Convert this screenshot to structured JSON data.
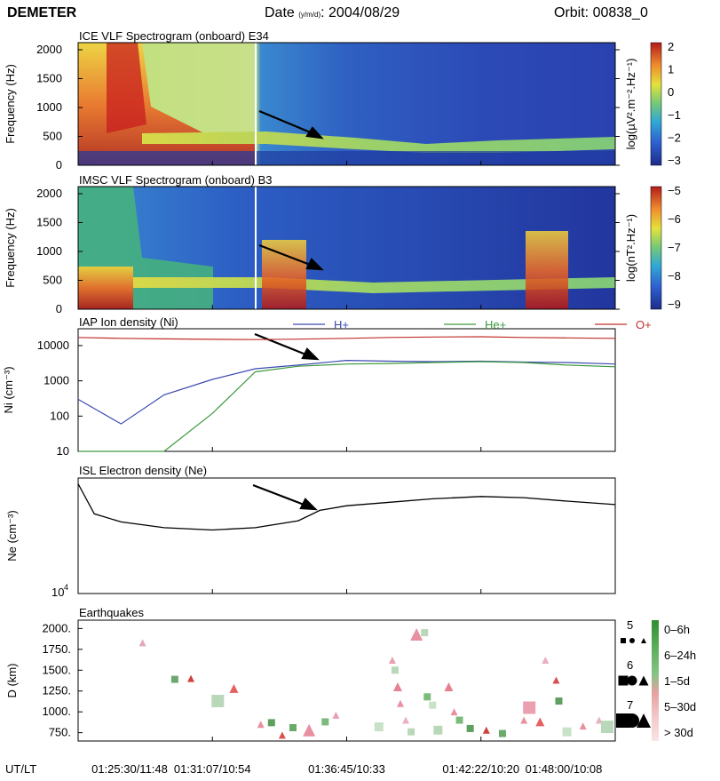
{
  "header": {
    "mission": "DEMETER",
    "date_label": "Date",
    "date_sub": "(y/m/d)",
    "date_value": ": 2004/08/29",
    "orbit": "Orbit: 00838_0"
  },
  "time_axis": {
    "label": "UT/LT",
    "ticks": [
      "01:25:30/11:48",
      "01:31:07/10:54",
      "01:36:45/10:33",
      "01:42:22/10:20",
      "01:48:00/10:08"
    ]
  },
  "chart_data": [
    {
      "type": "heatmap",
      "title": "ICE VLF Spectrogram (onboard) E34",
      "ylabel": "Frequency (Hz)",
      "yticks": [
        "2000",
        "1500",
        "1000",
        "500",
        "0"
      ],
      "ylim": [
        0,
        2000
      ],
      "colorbar_label": "log(µV².m⁻².Hz⁻¹)",
      "colorbar_ticks": [
        "2",
        "1",
        "0",
        "−1",
        "−2",
        "−3"
      ],
      "colorbar_range": [
        -3,
        2
      ]
    },
    {
      "type": "heatmap",
      "title": "IMSC VLF Spectrogram (onboard) B3",
      "ylabel": "Frequency (Hz)",
      "yticks": [
        "2000",
        "1500",
        "1000",
        "500",
        "0"
      ],
      "ylim": [
        0,
        2000
      ],
      "colorbar_label": "log(nT².Hz⁻¹)",
      "colorbar_ticks": [
        "−5",
        "−6",
        "−7",
        "−8",
        "−9"
      ],
      "colorbar_range": [
        -9,
        -5
      ]
    },
    {
      "type": "line",
      "title": "IAP Ion density (Ni)",
      "ylabel": "Ni (cm⁻³)",
      "yscale": "log",
      "yticks": [
        "10000",
        "1000",
        "100",
        "10"
      ],
      "ylim": [
        10,
        30000
      ],
      "x": [
        0,
        0.08,
        0.16,
        0.25,
        0.33,
        0.41,
        0.5,
        0.58,
        0.66,
        0.75,
        0.83,
        0.91,
        1.0
      ],
      "series": [
        {
          "name": "H+",
          "color": "#3b4ab0",
          "values": [
            300,
            60,
            400,
            1100,
            2200,
            2800,
            3800,
            3600,
            3500,
            3600,
            3400,
            3300,
            3000
          ]
        },
        {
          "name": "He+",
          "color": "#3d9a3d",
          "values": [
            10,
            10,
            10,
            120,
            1800,
            2600,
            3000,
            3100,
            3300,
            3500,
            3300,
            2800,
            2500
          ]
        },
        {
          "name": "O+",
          "color": "#c0302a",
          "values": [
            17000,
            16000,
            15500,
            15000,
            14800,
            15200,
            16000,
            17000,
            17500,
            17800,
            17000,
            16500,
            16000
          ]
        }
      ]
    },
    {
      "type": "line",
      "title": "ISL Electron density (Ne)",
      "ylabel": "Ne (cm⁻³)",
      "yscale": "log",
      "ytick_base": "10",
      "ytick_exp": "4",
      "x": [
        0,
        0.03,
        0.08,
        0.16,
        0.25,
        0.33,
        0.41,
        0.45,
        0.5,
        0.58,
        0.66,
        0.75,
        0.83,
        0.91,
        1.0
      ],
      "series": [
        {
          "name": "Ne",
          "color": "#000000",
          "values": [
            0.95,
            0.69,
            0.62,
            0.57,
            0.55,
            0.57,
            0.63,
            0.72,
            0.76,
            0.79,
            0.82,
            0.84,
            0.83,
            0.8,
            0.77
          ]
        }
      ]
    },
    {
      "type": "scatter",
      "title": "Earthquakes",
      "ylabel": "D (km)",
      "yticks": [
        "2000.",
        "1750.",
        "1500.",
        "1250.",
        "1000.",
        "750."
      ],
      "ylim": [
        650,
        2100
      ],
      "legend": {
        "sizes": [
          "5",
          "6",
          "7"
        ],
        "time_bins": [
          "0–6h",
          "6–24h",
          "1–5d",
          "5–30d",
          "> 30d"
        ],
        "time_colors": [
          "#2f8f2f",
          "#5fb05f",
          "#86c486",
          "#e8a0a0",
          "#f2c8c8"
        ]
      },
      "points": [
        {
          "x": 0.12,
          "d": 1830,
          "shape": "tri",
          "color": "#e3a8c0",
          "size": 5
        },
        {
          "x": 0.18,
          "d": 1390,
          "shape": "sq",
          "color": "#6fa86f",
          "size": 5
        },
        {
          "x": 0.21,
          "d": 1400,
          "shape": "tri",
          "color": "#d04040",
          "size": 5
        },
        {
          "x": 0.26,
          "d": 1130,
          "shape": "sq",
          "color": "#b9d8b9",
          "size": 7
        },
        {
          "x": 0.29,
          "d": 1280,
          "shape": "tri",
          "color": "#e56060",
          "size": 6
        },
        {
          "x": 0.34,
          "d": 850,
          "shape": "tri",
          "color": "#e890a0",
          "size": 5
        },
        {
          "x": 0.36,
          "d": 870,
          "shape": "sq",
          "color": "#5f9f5f",
          "size": 5
        },
        {
          "x": 0.38,
          "d": 720,
          "shape": "tri",
          "color": "#d85050",
          "size": 5
        },
        {
          "x": 0.4,
          "d": 810,
          "shape": "sq",
          "color": "#6aaa6a",
          "size": 5
        },
        {
          "x": 0.43,
          "d": 780,
          "shape": "tri",
          "color": "#e890a0",
          "size": 7
        },
        {
          "x": 0.46,
          "d": 880,
          "shape": "sq",
          "color": "#7dbb7d",
          "size": 5
        },
        {
          "x": 0.48,
          "d": 960,
          "shape": "tri",
          "color": "#eaa0b0",
          "size": 5
        },
        {
          "x": 0.56,
          "d": 820,
          "shape": "sq",
          "color": "#c7e2c7",
          "size": 6
        },
        {
          "x": 0.585,
          "d": 1620,
          "shape": "tri",
          "color": "#eaa0b0",
          "size": 5
        },
        {
          "x": 0.59,
          "d": 1500,
          "shape": "sq",
          "color": "#b9d8b9",
          "size": 5
        },
        {
          "x": 0.595,
          "d": 1300,
          "shape": "tri",
          "color": "#e58090",
          "size": 6
        },
        {
          "x": 0.6,
          "d": 1100,
          "shape": "tri",
          "color": "#e890a0",
          "size": 5
        },
        {
          "x": 0.61,
          "d": 900,
          "shape": "tri",
          "color": "#eab0c0",
          "size": 5
        },
        {
          "x": 0.62,
          "d": 760,
          "shape": "sq",
          "color": "#b9d8b9",
          "size": 5
        },
        {
          "x": 0.63,
          "d": 1930,
          "shape": "tri",
          "color": "#e890a0",
          "size": 7
        },
        {
          "x": 0.645,
          "d": 1950,
          "shape": "sq",
          "color": "#b9d8b9",
          "size": 5
        },
        {
          "x": 0.65,
          "d": 1180,
          "shape": "sq",
          "color": "#7dbb7d",
          "size": 5
        },
        {
          "x": 0.66,
          "d": 1080,
          "shape": "sq",
          "color": "#c7e2c7",
          "size": 5
        },
        {
          "x": 0.67,
          "d": 780,
          "shape": "sq",
          "color": "#b9d8b9",
          "size": 6
        },
        {
          "x": 0.69,
          "d": 1300,
          "shape": "tri",
          "color": "#e58090",
          "size": 6
        },
        {
          "x": 0.7,
          "d": 1000,
          "shape": "tri",
          "color": "#e890a0",
          "size": 5
        },
        {
          "x": 0.71,
          "d": 900,
          "shape": "sq",
          "color": "#7dbb7d",
          "size": 5
        },
        {
          "x": 0.73,
          "d": 800,
          "shape": "sq",
          "color": "#5f9f5f",
          "size": 5
        },
        {
          "x": 0.76,
          "d": 780,
          "shape": "tri",
          "color": "#d04040",
          "size": 5
        },
        {
          "x": 0.79,
          "d": 740,
          "shape": "sq",
          "color": "#6aaa6a",
          "size": 5
        },
        {
          "x": 0.83,
          "d": 900,
          "shape": "tri",
          "color": "#e890a0",
          "size": 5
        },
        {
          "x": 0.84,
          "d": 1050,
          "shape": "sq",
          "color": "#eaa0b0",
          "size": 7
        },
        {
          "x": 0.86,
          "d": 880,
          "shape": "tri",
          "color": "#e56060",
          "size": 6
        },
        {
          "x": 0.87,
          "d": 1620,
          "shape": "tri",
          "color": "#eab0c0",
          "size": 5
        },
        {
          "x": 0.89,
          "d": 1380,
          "shape": "tri",
          "color": "#d85050",
          "size": 5
        },
        {
          "x": 0.895,
          "d": 1130,
          "shape": "sq",
          "color": "#5f9f5f",
          "size": 5
        },
        {
          "x": 0.91,
          "d": 760,
          "shape": "sq",
          "color": "#c7e2c7",
          "size": 6
        },
        {
          "x": 0.94,
          "d": 830,
          "shape": "tri",
          "color": "#e890a0",
          "size": 5
        },
        {
          "x": 0.97,
          "d": 900,
          "shape": "tri",
          "color": "#eab0c0",
          "size": 5
        },
        {
          "x": 0.985,
          "d": 820,
          "shape": "sq",
          "color": "#b9d8b9",
          "size": 7
        }
      ]
    }
  ]
}
